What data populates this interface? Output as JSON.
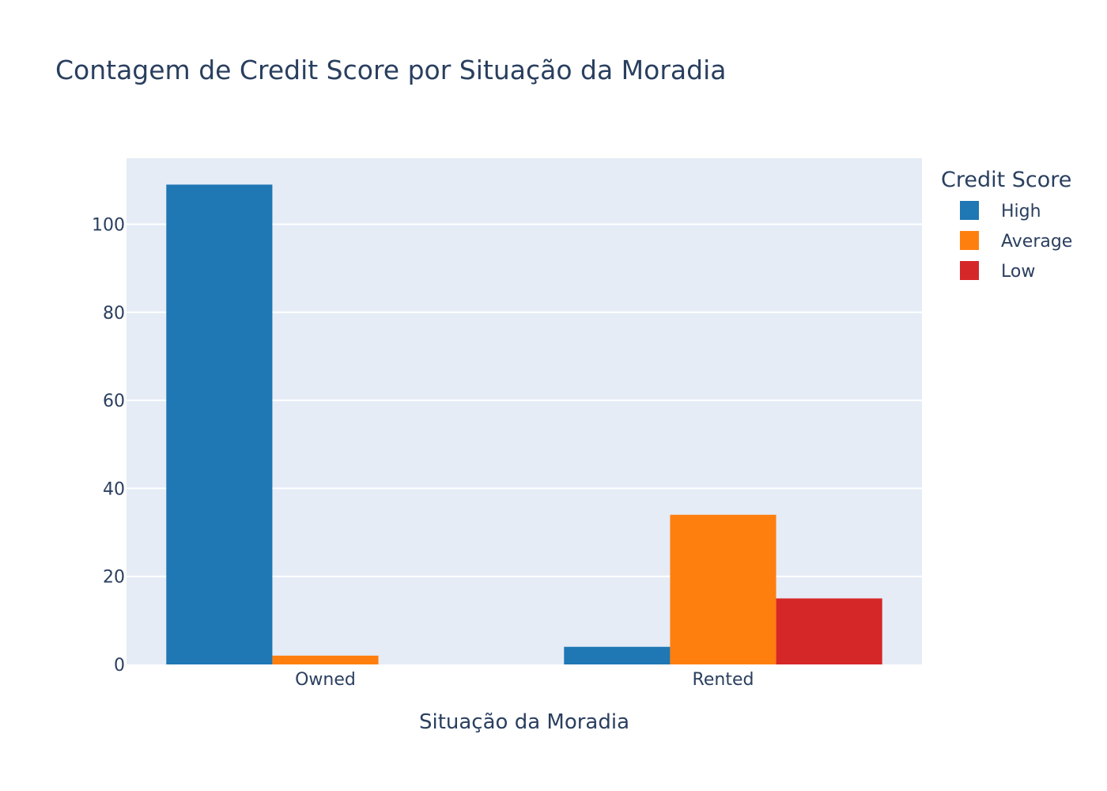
{
  "chart_data": {
    "type": "bar",
    "title": "Contagem de Credit Score por Situação da Moradia",
    "xlabel": "Situação da Moradia",
    "ylabel": "",
    "categories": [
      "Owned",
      "Rented"
    ],
    "series": [
      {
        "name": "High",
        "values": [
          109,
          4
        ],
        "color": "#1f77b4"
      },
      {
        "name": "Average",
        "values": [
          2,
          34
        ],
        "color": "#ff7f0e"
      },
      {
        "name": "Low",
        "values": [
          0,
          15
        ],
        "color": "#d62728"
      }
    ],
    "ylim": [
      0,
      115
    ],
    "yticks": [
      0,
      20,
      40,
      60,
      80,
      100
    ],
    "legend_title": "Credit Score",
    "legend_position": "top-right",
    "grid": true,
    "barmode": "group",
    "plot_background": "#e5ecf6",
    "text_color": "#2a3f5f"
  }
}
